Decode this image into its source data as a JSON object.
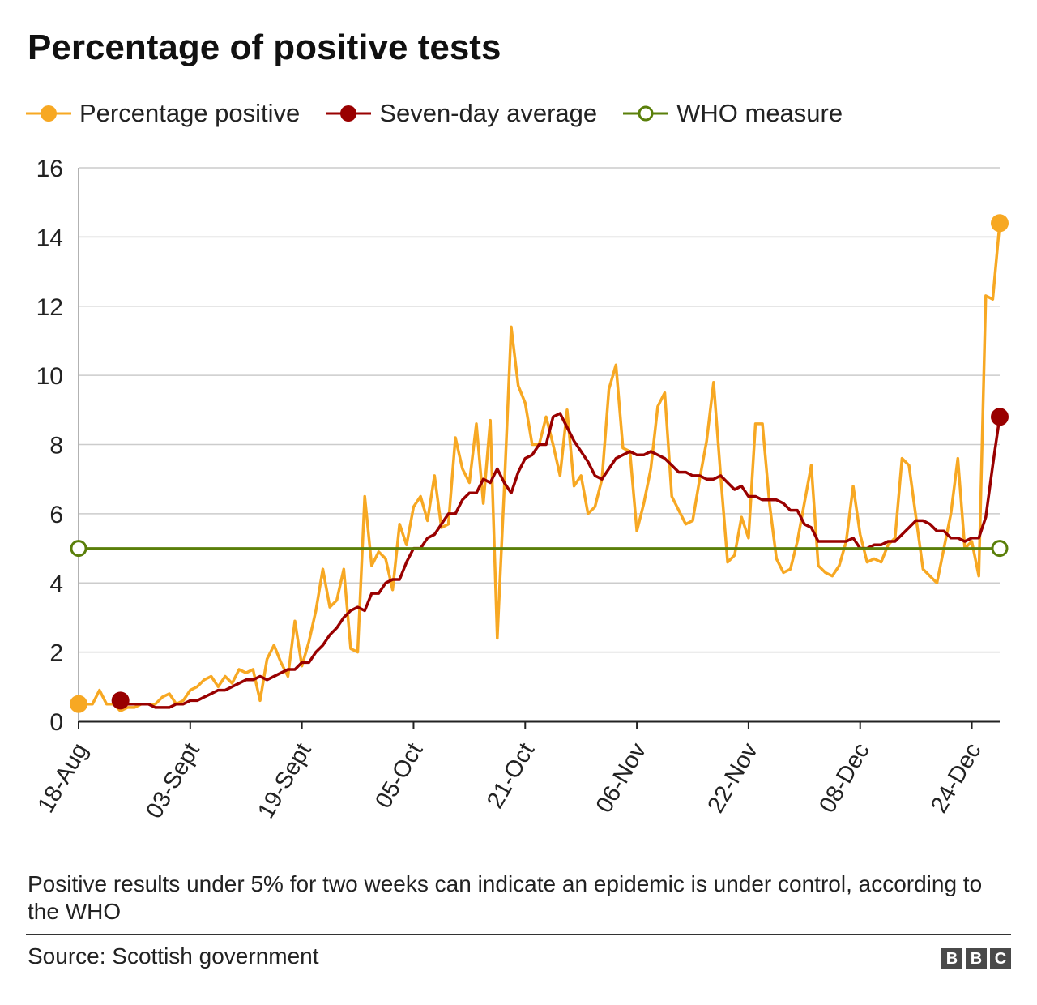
{
  "title": "Percentage of positive tests",
  "legend": [
    {
      "label": "Percentage positive",
      "color": "#f7a823",
      "marker": "filled-circle"
    },
    {
      "label": "Seven-day average",
      "color": "#990000",
      "marker": "filled-circle"
    },
    {
      "label": "WHO measure",
      "color": "#5a7f0a",
      "marker": "open-circle"
    }
  ],
  "footnote": "Positive results under 5% for two weeks can indicate an epidemic is under control, according to the WHO",
  "source": "Source: Scottish government",
  "logo": {
    "letters": [
      "B",
      "B",
      "C"
    ]
  },
  "chart_data": {
    "type": "line",
    "ylim": [
      0,
      16
    ],
    "yticks": [
      0,
      2,
      4,
      6,
      8,
      10,
      12,
      14,
      16
    ],
    "xlim": [
      0,
      132
    ],
    "xticks": [
      {
        "label": "18-Aug",
        "day": 0
      },
      {
        "label": "03-Sept",
        "day": 16
      },
      {
        "label": "19-Sept",
        "day": 32
      },
      {
        "label": "05-Oct",
        "day": 48
      },
      {
        "label": "21-Oct",
        "day": 64
      },
      {
        "label": "06-Nov",
        "day": 80
      },
      {
        "label": "22-Nov",
        "day": 96
      },
      {
        "label": "08-Dec",
        "day": 112
      },
      {
        "label": "24-Dec",
        "day": 128
      }
    ],
    "grid": true,
    "legend_position": "top",
    "series": [
      {
        "name": "Percentage positive",
        "color": "#f7a823",
        "start_day": 0,
        "values": [
          0.5,
          0.5,
          0.5,
          0.9,
          0.5,
          0.5,
          0.3,
          0.4,
          0.4,
          0.5,
          0.5,
          0.5,
          0.7,
          0.8,
          0.5,
          0.6,
          0.9,
          1.0,
          1.2,
          1.3,
          1.0,
          1.3,
          1.1,
          1.5,
          1.4,
          1.5,
          0.6,
          1.8,
          2.2,
          1.7,
          1.3,
          2.9,
          1.6,
          2.3,
          3.2,
          4.4,
          3.3,
          3.5,
          4.4,
          2.1,
          2.0,
          6.5,
          4.5,
          4.9,
          4.7,
          3.8,
          5.7,
          5.1,
          6.2,
          6.5,
          5.8,
          7.1,
          5.6,
          5.7,
          8.2,
          7.3,
          6.9,
          8.6,
          6.3,
          8.7,
          2.4,
          6.7,
          11.4,
          9.7,
          9.2,
          8.0,
          8.0,
          8.8,
          8.0,
          7.1,
          9.0,
          6.8,
          7.1,
          6.0,
          6.2,
          7.0,
          9.6,
          10.3,
          7.9,
          7.8,
          5.5,
          6.3,
          7.3,
          9.1,
          9.5,
          6.5,
          6.1,
          5.7,
          5.8,
          7.0,
          8.1,
          9.8,
          7.1,
          4.6,
          4.8,
          5.9,
          5.3,
          8.6,
          8.6,
          6.3,
          4.7,
          4.3,
          4.4,
          5.2,
          6.3,
          7.4,
          4.5,
          4.3,
          4.2,
          4.5,
          5.2,
          6.8,
          5.4,
          4.6,
          4.7,
          4.6,
          5.1,
          5.3,
          7.6,
          7.4,
          5.9,
          4.4,
          4.2,
          4.0,
          5.0,
          6.0,
          7.6,
          5.0,
          5.2,
          4.2,
          12.3,
          12.2,
          14.4
        ]
      },
      {
        "name": "Seven-day average",
        "color": "#990000",
        "start_day": 6,
        "values": [
          0.6,
          0.5,
          0.5,
          0.5,
          0.5,
          0.4,
          0.4,
          0.4,
          0.5,
          0.5,
          0.6,
          0.6,
          0.7,
          0.8,
          0.9,
          0.9,
          1.0,
          1.1,
          1.2,
          1.2,
          1.3,
          1.2,
          1.3,
          1.4,
          1.5,
          1.5,
          1.7,
          1.7,
          2.0,
          2.2,
          2.5,
          2.7,
          3.0,
          3.2,
          3.3,
          3.2,
          3.7,
          3.7,
          4.0,
          4.1,
          4.1,
          4.6,
          5.0,
          5.0,
          5.3,
          5.4,
          5.7,
          6.0,
          6.0,
          6.4,
          6.6,
          6.6,
          7.0,
          6.9,
          7.3,
          6.9,
          6.6,
          7.2,
          7.6,
          7.7,
          8.0,
          8.0,
          8.8,
          8.9,
          8.5,
          8.1,
          7.8,
          7.5,
          7.1,
          7.0,
          7.3,
          7.6,
          7.7,
          7.8,
          7.7,
          7.7,
          7.8,
          7.7,
          7.6,
          7.4,
          7.2,
          7.2,
          7.1,
          7.1,
          7.0,
          7.0,
          7.1,
          6.9,
          6.7,
          6.8,
          6.5,
          6.5,
          6.4,
          6.4,
          6.4,
          6.3,
          6.1,
          6.1,
          5.7,
          5.6,
          5.2,
          5.2,
          5.2,
          5.2,
          5.2,
          5.3,
          5.0,
          5.0,
          5.1,
          5.1,
          5.2,
          5.2,
          5.4,
          5.6,
          5.8,
          5.8,
          5.7,
          5.5,
          5.5,
          5.3,
          5.3,
          5.2,
          5.3,
          5.3,
          5.9,
          7.4,
          8.8
        ]
      },
      {
        "name": "WHO measure",
        "color": "#5a7f0a",
        "x": [
          0,
          132
        ],
        "values": [
          5,
          5
        ]
      }
    ]
  }
}
